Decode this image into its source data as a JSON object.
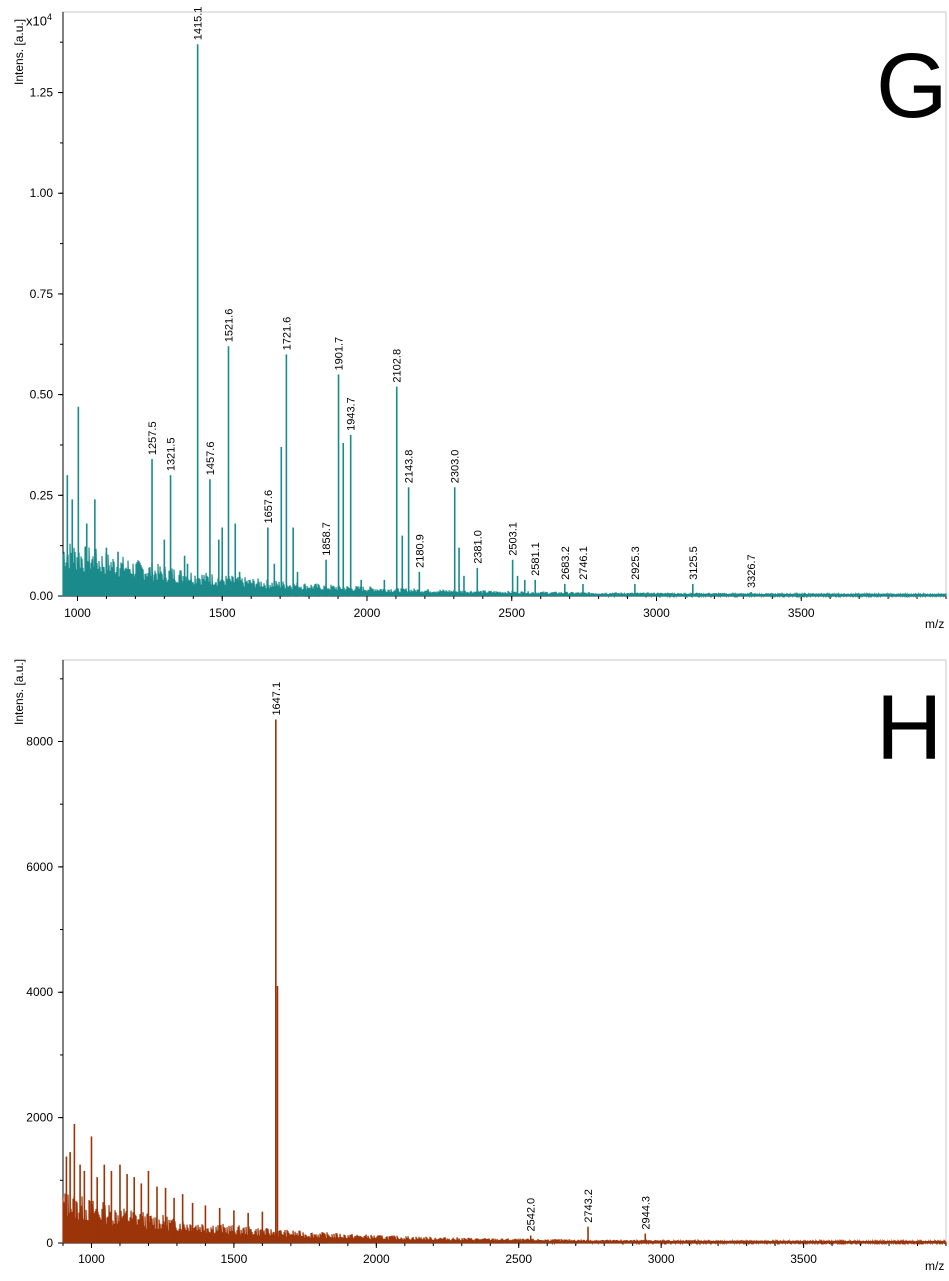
{
  "chart_data": [
    {
      "type": "line",
      "panel_label": "G",
      "ylabel": "Intens. [a.u.]",
      "yscale_label": "x10",
      "yscale_exponent": "4",
      "xlabel": "m/z",
      "xlim": [
        950,
        4000
      ],
      "ylim": [
        0,
        1.45
      ],
      "yticks": [
        "0.00",
        "0.25",
        "0.50",
        "0.75",
        "1.00",
        "1.25"
      ],
      "xticks": [
        "1000",
        "1500",
        "2000",
        "2500",
        "3000",
        "3500"
      ],
      "color": "#1a8a8a",
      "noise_amp": 0.14,
      "series": [
        {
          "peaks": [
            {
              "x": 1257.5,
              "y": 0.34,
              "label": "1257.5"
            },
            {
              "x": 1321.5,
              "y": 0.3,
              "label": "1321.5"
            },
            {
              "x": 1415.1,
              "y": 1.37,
              "label": "1415.1"
            },
            {
              "x": 1457.6,
              "y": 0.29,
              "label": "1457.6"
            },
            {
              "x": 1521.6,
              "y": 0.62,
              "label": "1521.6"
            },
            {
              "x": 1657.6,
              "y": 0.17,
              "label": "1657.6"
            },
            {
              "x": 1721.6,
              "y": 0.6,
              "label": "1721.6"
            },
            {
              "x": 1858.7,
              "y": 0.09,
              "label": "1858.7"
            },
            {
              "x": 1901.7,
              "y": 0.55,
              "label": "1901.7"
            },
            {
              "x": 1943.7,
              "y": 0.4,
              "label": "1943.7"
            },
            {
              "x": 2102.8,
              "y": 0.52,
              "label": "2102.8"
            },
            {
              "x": 2143.8,
              "y": 0.27,
              "label": "2143.8"
            },
            {
              "x": 2180.9,
              "y": 0.06,
              "label": "2180.9"
            },
            {
              "x": 2303.0,
              "y": 0.27,
              "label": "2303.0"
            },
            {
              "x": 2381.0,
              "y": 0.07,
              "label": "2381.0"
            },
            {
              "x": 2503.1,
              "y": 0.09,
              "label": "2503.1"
            },
            {
              "x": 2581.1,
              "y": 0.04,
              "label": "2581.1"
            },
            {
              "x": 2683.2,
              "y": 0.03,
              "label": "2683.2"
            },
            {
              "x": 2746.1,
              "y": 0.03,
              "label": "2746.1"
            },
            {
              "x": 2925.3,
              "y": 0.03,
              "label": "2925.3"
            },
            {
              "x": 3125.5,
              "y": 0.03,
              "label": "3125.5"
            },
            {
              "x": 3326.7,
              "y": 0.01,
              "label": "3326.7"
            },
            {
              "x": 965,
              "y": 0.3
            },
            {
              "x": 982,
              "y": 0.24
            },
            {
              "x": 1003,
              "y": 0.47
            },
            {
              "x": 1032,
              "y": 0.18
            },
            {
              "x": 1060,
              "y": 0.24
            },
            {
              "x": 1100,
              "y": 0.12
            },
            {
              "x": 1140,
              "y": 0.11
            },
            {
              "x": 1300,
              "y": 0.14
            },
            {
              "x": 1370,
              "y": 0.1
            },
            {
              "x": 1380,
              "y": 0.08
            },
            {
              "x": 1488,
              "y": 0.14
            },
            {
              "x": 1500,
              "y": 0.17
            },
            {
              "x": 1545,
              "y": 0.18
            },
            {
              "x": 1560,
              "y": 0.06
            },
            {
              "x": 1680,
              "y": 0.08
            },
            {
              "x": 1704,
              "y": 0.37
            },
            {
              "x": 1745,
              "y": 0.17
            },
            {
              "x": 1760,
              "y": 0.06
            },
            {
              "x": 1918,
              "y": 0.38
            },
            {
              "x": 1980,
              "y": 0.04
            },
            {
              "x": 2060,
              "y": 0.04
            },
            {
              "x": 2122,
              "y": 0.15
            },
            {
              "x": 2318,
              "y": 0.12
            },
            {
              "x": 2335,
              "y": 0.05
            },
            {
              "x": 2520,
              "y": 0.05
            },
            {
              "x": 2545,
              "y": 0.04
            }
          ]
        }
      ]
    },
    {
      "type": "line",
      "panel_label": "H",
      "ylabel": "Intens. [a.u.]",
      "xlabel": "m/z",
      "xlim": [
        900,
        4000
      ],
      "ylim": [
        0,
        9300
      ],
      "yticks": [
        "0",
        "2000",
        "4000",
        "6000",
        "8000"
      ],
      "xticks": [
        "1000",
        "1500",
        "2000",
        "2500",
        "3000",
        "3500"
      ],
      "color": "#9b3408",
      "noise_amp": 820,
      "series": [
        {
          "peaks": [
            {
              "x": 1647.1,
              "y": 8350,
              "label": "1647.1"
            },
            {
              "x": 2542.0,
              "y": 120,
              "label": "2542.0"
            },
            {
              "x": 2743.2,
              "y": 260,
              "label": "2743.2"
            },
            {
              "x": 2944.3,
              "y": 150,
              "label": "2944.3"
            },
            {
              "x": 912,
              "y": 1380
            },
            {
              "x": 925,
              "y": 1450
            },
            {
              "x": 940,
              "y": 1900
            },
            {
              "x": 960,
              "y": 1250
            },
            {
              "x": 975,
              "y": 1150
            },
            {
              "x": 1000,
              "y": 1700
            },
            {
              "x": 1020,
              "y": 1050
            },
            {
              "x": 1045,
              "y": 1250
            },
            {
              "x": 1070,
              "y": 1150
            },
            {
              "x": 1100,
              "y": 1250
            },
            {
              "x": 1125,
              "y": 1100
            },
            {
              "x": 1150,
              "y": 1050
            },
            {
              "x": 1175,
              "y": 950
            },
            {
              "x": 1200,
              "y": 1150
            },
            {
              "x": 1230,
              "y": 900
            },
            {
              "x": 1260,
              "y": 880
            },
            {
              "x": 1290,
              "y": 720
            },
            {
              "x": 1320,
              "y": 780
            },
            {
              "x": 1355,
              "y": 640
            },
            {
              "x": 1400,
              "y": 600
            },
            {
              "x": 1450,
              "y": 560
            },
            {
              "x": 1500,
              "y": 520
            },
            {
              "x": 1550,
              "y": 480
            },
            {
              "x": 1600,
              "y": 500
            },
            {
              "x": 1653,
              "y": 4100
            }
          ]
        }
      ]
    }
  ]
}
